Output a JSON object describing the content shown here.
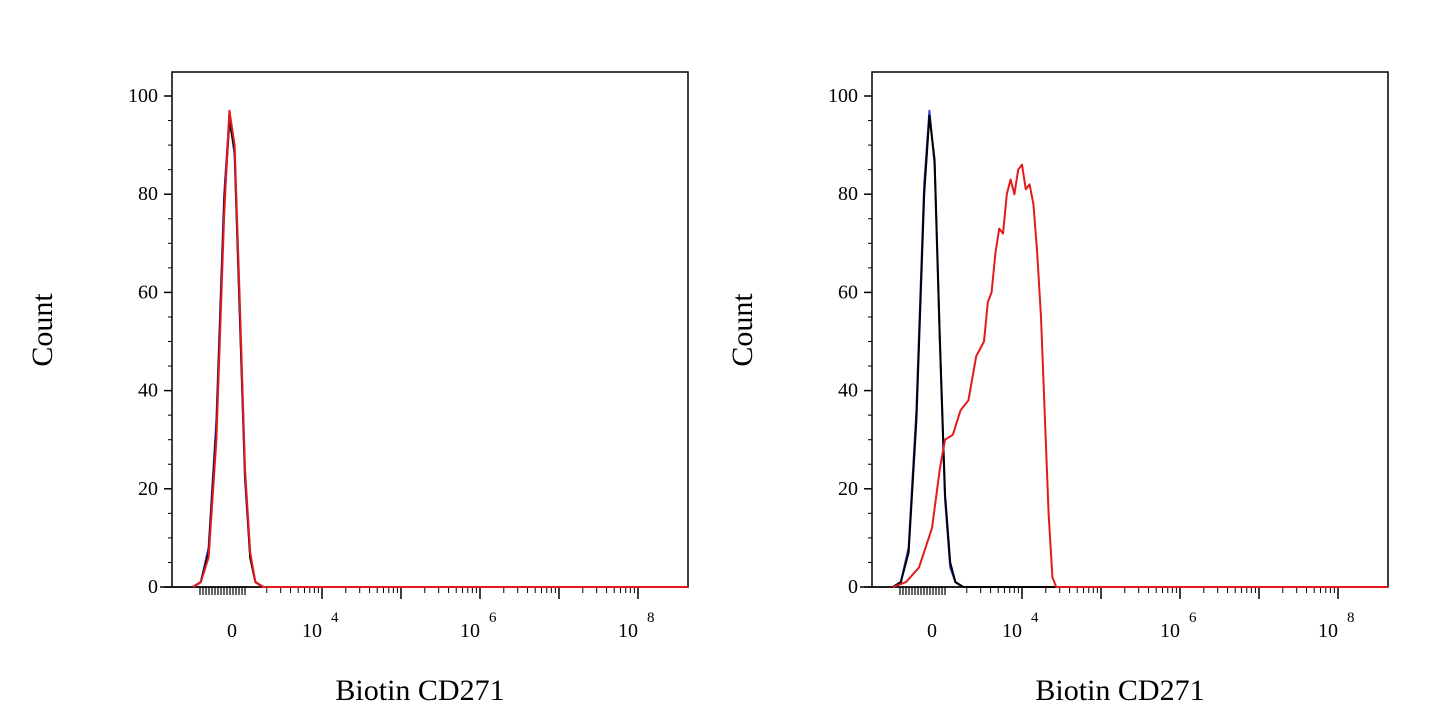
{
  "chart_data": [
    {
      "type": "line",
      "title": "",
      "xlabel": "Biotin CD271",
      "ylabel": "Count",
      "ylim": [
        0,
        100
      ],
      "x_scale": "log (flow cytometry, with 0 on linear region)",
      "y_ticks": [
        "0",
        "20",
        "40",
        "60",
        "80",
        "100"
      ],
      "x_ticks": [
        {
          "value": 0,
          "base": "0",
          "exp": ""
        },
        {
          "value": 10000,
          "base": "10",
          "exp": "4"
        },
        {
          "value": 1000000,
          "base": "10",
          "exp": "6"
        },
        {
          "value": 100000000,
          "base": "10",
          "exp": "8"
        }
      ],
      "grid": false,
      "series": [
        {
          "color": "#2b3fd6",
          "log10_x": [
            -1.5,
            -1.2,
            -0.9,
            -0.6,
            -0.3,
            -0.1,
            0.1,
            0.3,
            0.5,
            0.7,
            0.9,
            1.2,
            1.5
          ],
          "y": [
            0,
            1,
            8,
            34,
            80,
            96,
            88,
            55,
            22,
            6,
            1,
            0,
            0
          ]
        },
        {
          "color": "#000000",
          "log10_x": [
            -1.5,
            -1.2,
            -0.9,
            -0.6,
            -0.3,
            -0.1,
            0.1,
            0.3,
            0.5,
            0.7,
            0.9,
            1.2,
            1.5
          ],
          "y": [
            0,
            1,
            7,
            32,
            78,
            95,
            89,
            56,
            23,
            6,
            1,
            0,
            0
          ]
        },
        {
          "color": "#e31a1c",
          "log10_x": [
            -1.5,
            -1.2,
            -0.9,
            -0.6,
            -0.3,
            -0.1,
            0.1,
            0.3,
            0.5,
            0.7,
            0.9,
            1.2,
            1.5
          ],
          "y": [
            0,
            1,
            6,
            30,
            76,
            97,
            90,
            58,
            24,
            7,
            1,
            0,
            0
          ]
        }
      ]
    },
    {
      "type": "line",
      "title": "",
      "xlabel": "Biotin CD271",
      "ylabel": "Count",
      "ylim": [
        0,
        100
      ],
      "x_scale": "log (flow cytometry, with 0 on linear region)",
      "y_ticks": [
        "0",
        "20",
        "40",
        "60",
        "80",
        "100"
      ],
      "x_ticks": [
        {
          "value": 0,
          "base": "0",
          "exp": ""
        },
        {
          "value": 10000,
          "base": "10",
          "exp": "4"
        },
        {
          "value": 1000000,
          "base": "10",
          "exp": "6"
        },
        {
          "value": 100000000,
          "base": "10",
          "exp": "8"
        }
      ],
      "grid": false,
      "series": [
        {
          "color": "#2b3fd6",
          "log10_x": [
            -1.5,
            -1.2,
            -0.9,
            -0.6,
            -0.3,
            -0.1,
            0.1,
            0.3,
            0.5,
            0.7,
            0.9,
            1.2,
            1.5
          ],
          "y": [
            0,
            1,
            8,
            36,
            82,
            97,
            86,
            50,
            18,
            4,
            1,
            0,
            0
          ]
        },
        {
          "color": "#000000",
          "log10_x": [
            -1.5,
            -1.2,
            -0.9,
            -0.6,
            -0.3,
            -0.1,
            0.1,
            0.3,
            0.5,
            0.7,
            0.9,
            1.2,
            1.5
          ],
          "y": [
            0,
            1,
            7,
            34,
            80,
            96,
            87,
            51,
            19,
            5,
            1,
            0,
            0
          ]
        },
        {
          "color": "#e31a1c",
          "log10_x": [
            -1.5,
            -1.0,
            -0.5,
            0.0,
            0.3,
            0.5,
            0.8,
            1.1,
            1.4,
            1.7,
            2.0,
            2.2,
            2.4,
            2.6,
            2.8,
            3.0,
            3.2,
            3.4,
            3.6,
            3.8,
            4.0,
            4.2,
            4.4,
            4.6,
            4.8,
            5.0,
            5.2,
            5.4,
            5.6,
            5.8,
            6.0,
            7.0,
            8.5
          ],
          "y": [
            0,
            1,
            4,
            12,
            24,
            30,
            31,
            36,
            38,
            47,
            50,
            58,
            60,
            68,
            73,
            72,
            80,
            83,
            80,
            85,
            86,
            81,
            82,
            78,
            68,
            55,
            35,
            15,
            2,
            0,
            0,
            0,
            0
          ]
        }
      ]
    }
  ]
}
